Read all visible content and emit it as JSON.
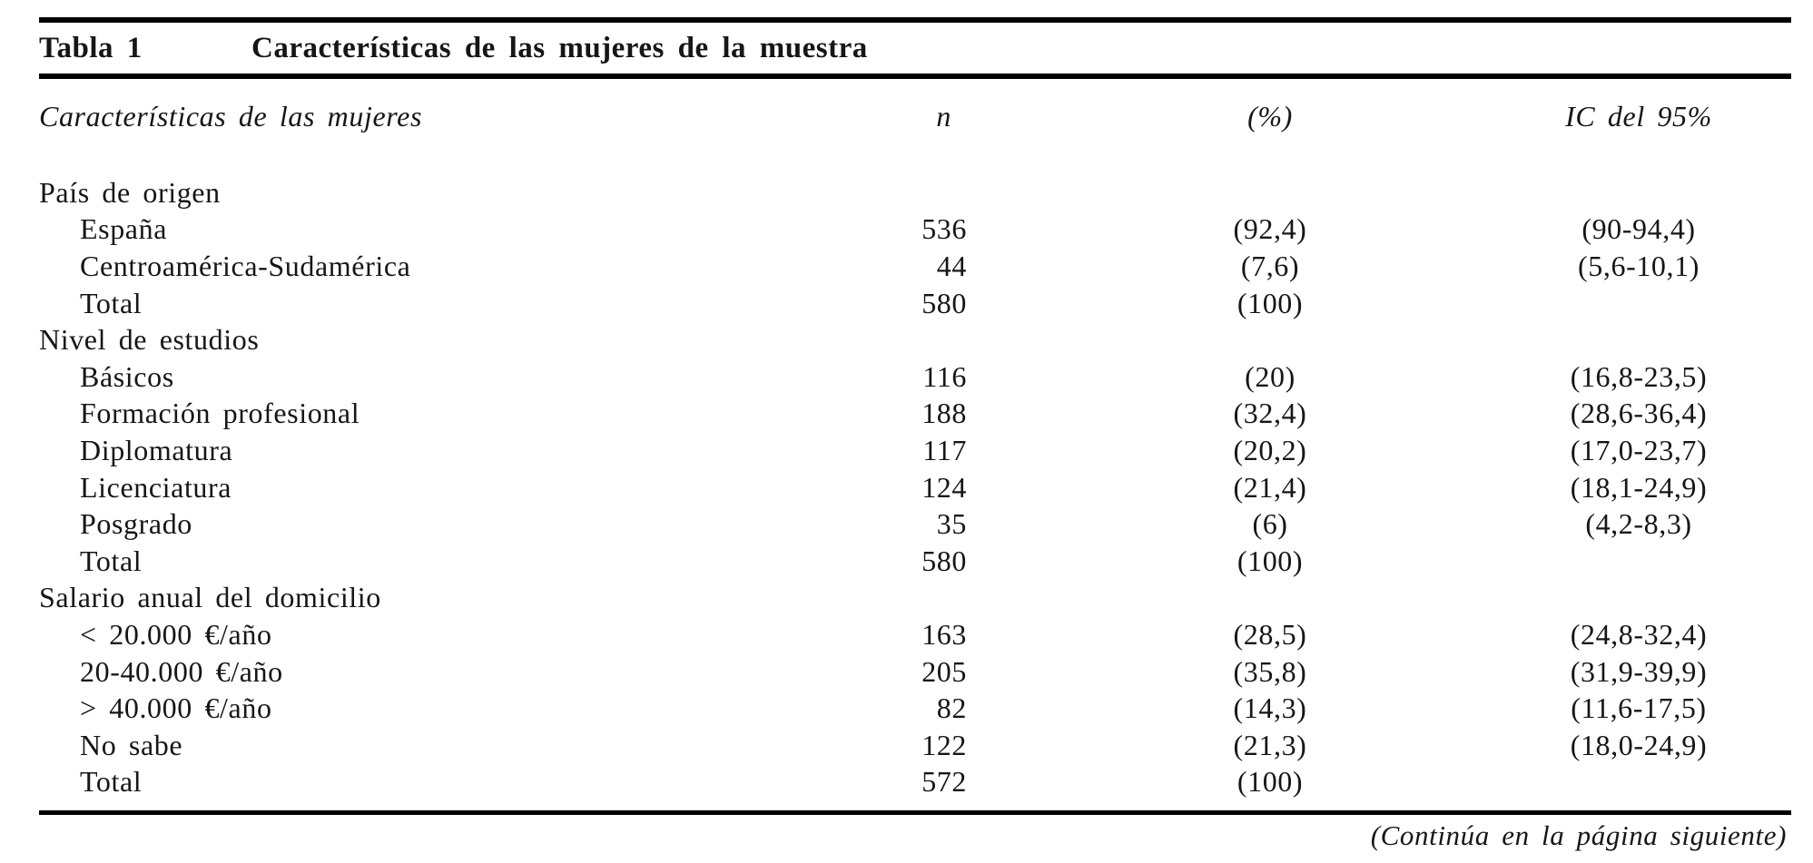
{
  "table": {
    "label": "Tabla 1",
    "title": "Características de las mujeres de la muestra",
    "columns": {
      "characteristic": "Características de las mujeres",
      "n": "n",
      "pct": "(%)",
      "ci": "IC del 95%"
    },
    "sections": [
      {
        "header": "País de origen",
        "rows": [
          {
            "label": "España",
            "n": "536",
            "pct": "(92,4)",
            "ci": "(90-94,4)"
          },
          {
            "label": "Centroamérica-Sudamérica",
            "n": "44",
            "pct": "(7,6)",
            "ci": "(5,6-10,1)"
          },
          {
            "label": "Total",
            "n": "580",
            "pct": "(100)",
            "ci": ""
          }
        ]
      },
      {
        "header": "Nivel de estudios",
        "rows": [
          {
            "label": "Básicos",
            "n": "116",
            "pct": "(20)",
            "ci": "(16,8-23,5)"
          },
          {
            "label": "Formación profesional",
            "n": "188",
            "pct": "(32,4)",
            "ci": "(28,6-36,4)"
          },
          {
            "label": "Diplomatura",
            "n": "117",
            "pct": "(20,2)",
            "ci": "(17,0-23,7)"
          },
          {
            "label": "Licenciatura",
            "n": "124",
            "pct": "(21,4)",
            "ci": "(18,1-24,9)"
          },
          {
            "label": "Posgrado",
            "n": "35",
            "pct": "(6)",
            "ci": "(4,2-8,3)"
          },
          {
            "label": "Total",
            "n": "580",
            "pct": "(100)",
            "ci": ""
          }
        ]
      },
      {
        "header": "Salario anual del domicilio",
        "rows": [
          {
            "label": "< 20.000 €/año",
            "n": "163",
            "pct": "(28,5)",
            "ci": "(24,8-32,4)"
          },
          {
            "label": "20-40.000 €/año",
            "n": "205",
            "pct": "(35,8)",
            "ci": "(31,9-39,9)"
          },
          {
            "label": "> 40.000 €/año",
            "n": "82",
            "pct": "(14,3)",
            "ci": "(11,6-17,5)"
          },
          {
            "label": "No sabe",
            "n": "122",
            "pct": "(21,3)",
            "ci": "(18,0-24,9)"
          },
          {
            "label": "Total",
            "n": "572",
            "pct": "(100)",
            "ci": ""
          }
        ]
      }
    ],
    "continuation_note": "(Continúa en la página siguiente)",
    "colors": {
      "text": "#161616",
      "rule": "#000000",
      "background": "#ffffff"
    }
  }
}
